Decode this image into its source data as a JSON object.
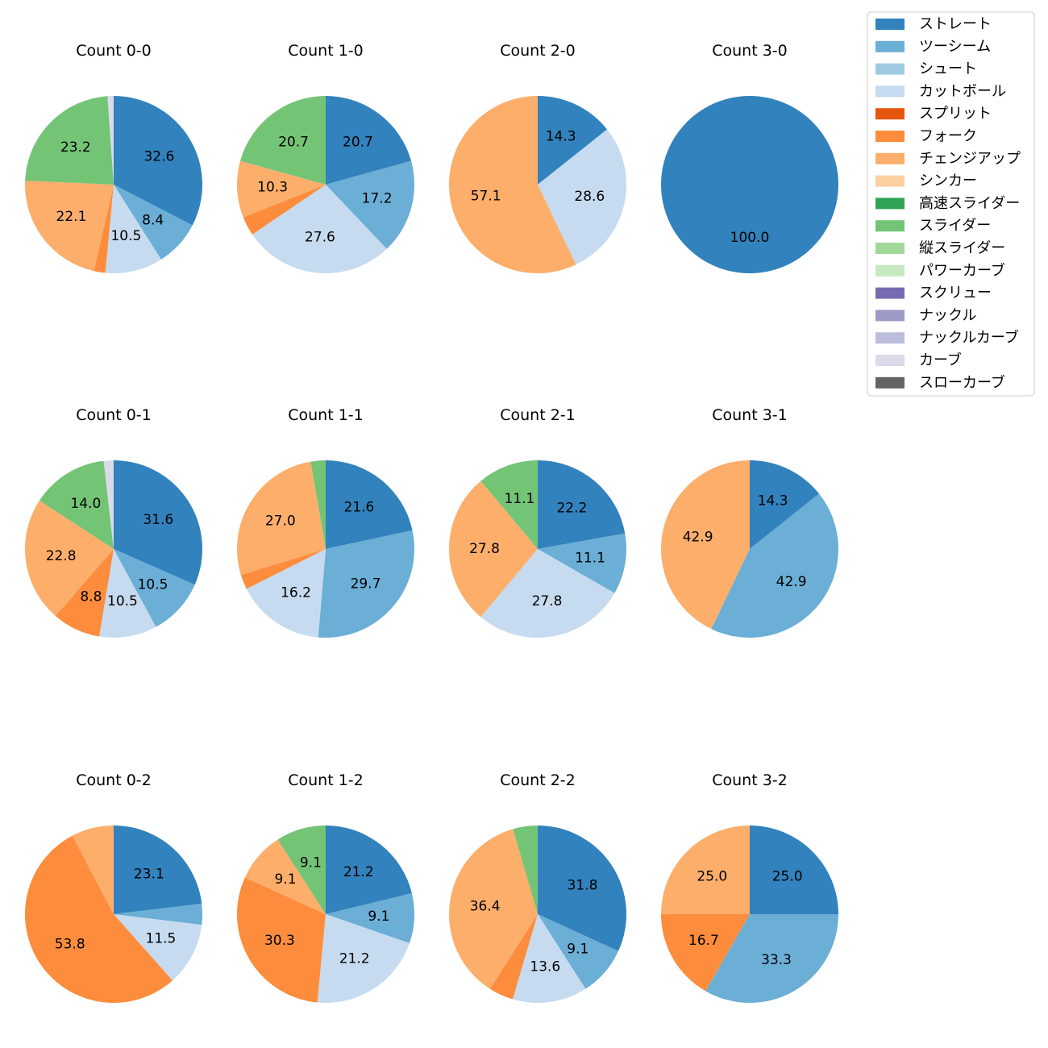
{
  "chart_data": {
    "type": "pie",
    "categories": [
      "ストレート",
      "ツーシーム",
      "シュート",
      "カットボール",
      "スプリット",
      "フォーク",
      "チェンジアップ",
      "シンカー",
      "高速スライダー",
      "スライダー",
      "縦スライダー",
      "パワーカーブ",
      "スクリュー",
      "ナックル",
      "ナックルカーブ",
      "カーブ",
      "スローカーブ"
    ],
    "colors": [
      "#3182bd",
      "#6baed6",
      "#9ecae1",
      "#c6dbef",
      "#e6550d",
      "#fd8d3c",
      "#fdae6b",
      "#fdd0a2",
      "#31a354",
      "#74c476",
      "#a1d99b",
      "#c7e9c0",
      "#756bb1",
      "#9e9ac8",
      "#bcbddc",
      "#dadaeb",
      "#636363"
    ],
    "pies": [
      {
        "title": "Count 0-0",
        "slices": [
          {
            "category": "ストレート",
            "value": 32.6,
            "label": "32.6"
          },
          {
            "category": "ツーシーム",
            "value": 8.4,
            "label": "8.4"
          },
          {
            "category": "カットボール",
            "value": 10.5,
            "label": "10.5"
          },
          {
            "category": "フォーク",
            "value": 2.1,
            "label": ""
          },
          {
            "category": "チェンジアップ",
            "value": 22.1,
            "label": "22.1"
          },
          {
            "category": "スライダー",
            "value": 23.2,
            "label": "23.2"
          },
          {
            "category": "カーブ",
            "value": 1.1,
            "label": ""
          }
        ]
      },
      {
        "title": "Count 1-0",
        "slices": [
          {
            "category": "ストレート",
            "value": 20.7,
            "label": "20.7"
          },
          {
            "category": "ツーシーム",
            "value": 17.2,
            "label": "17.2"
          },
          {
            "category": "カットボール",
            "value": 27.6,
            "label": "27.6"
          },
          {
            "category": "フォーク",
            "value": 3.5,
            "label": ""
          },
          {
            "category": "チェンジアップ",
            "value": 10.3,
            "label": "10.3"
          },
          {
            "category": "スライダー",
            "value": 20.7,
            "label": "20.7"
          }
        ]
      },
      {
        "title": "Count 2-0",
        "slices": [
          {
            "category": "ストレート",
            "value": 14.3,
            "label": "14.3"
          },
          {
            "category": "カットボール",
            "value": 28.6,
            "label": "28.6"
          },
          {
            "category": "チェンジアップ",
            "value": 57.1,
            "label": "57.1"
          }
        ]
      },
      {
        "title": "Count 3-0",
        "slices": [
          {
            "category": "ストレート",
            "value": 100.0,
            "label": "100.0"
          }
        ]
      },
      {
        "title": "Count 0-1",
        "slices": [
          {
            "category": "ストレート",
            "value": 31.6,
            "label": "31.6"
          },
          {
            "category": "ツーシーム",
            "value": 10.5,
            "label": "10.5"
          },
          {
            "category": "カットボール",
            "value": 10.5,
            "label": "10.5"
          },
          {
            "category": "フォーク",
            "value": 8.8,
            "label": "8.8"
          },
          {
            "category": "チェンジアップ",
            "value": 22.8,
            "label": "22.8"
          },
          {
            "category": "スライダー",
            "value": 14.0,
            "label": "14.0"
          },
          {
            "category": "カーブ",
            "value": 1.8,
            "label": ""
          }
        ]
      },
      {
        "title": "Count 1-1",
        "slices": [
          {
            "category": "ストレート",
            "value": 21.6,
            "label": "21.6"
          },
          {
            "category": "ツーシーム",
            "value": 29.7,
            "label": "29.7"
          },
          {
            "category": "カットボール",
            "value": 16.2,
            "label": "16.2"
          },
          {
            "category": "フォーク",
            "value": 2.7,
            "label": ""
          },
          {
            "category": "チェンジアップ",
            "value": 27.0,
            "label": "27.0"
          },
          {
            "category": "スライダー",
            "value": 2.7,
            "label": ""
          }
        ]
      },
      {
        "title": "Count 2-1",
        "slices": [
          {
            "category": "ストレート",
            "value": 22.2,
            "label": "22.2"
          },
          {
            "category": "ツーシーム",
            "value": 11.1,
            "label": "11.1"
          },
          {
            "category": "カットボール",
            "value": 27.8,
            "label": "27.8"
          },
          {
            "category": "チェンジアップ",
            "value": 27.8,
            "label": "27.8"
          },
          {
            "category": "スライダー",
            "value": 11.1,
            "label": "11.1"
          }
        ]
      },
      {
        "title": "Count 3-1",
        "slices": [
          {
            "category": "ストレート",
            "value": 14.3,
            "label": "14.3"
          },
          {
            "category": "ツーシーム",
            "value": 42.9,
            "label": "42.9"
          },
          {
            "category": "チェンジアップ",
            "value": 42.9,
            "label": "42.9"
          }
        ]
      },
      {
        "title": "Count 0-2",
        "slices": [
          {
            "category": "ストレート",
            "value": 23.1,
            "label": "23.1"
          },
          {
            "category": "ツーシーム",
            "value": 3.8,
            "label": ""
          },
          {
            "category": "カットボール",
            "value": 11.5,
            "label": "11.5"
          },
          {
            "category": "フォーク",
            "value": 53.8,
            "label": "53.8"
          },
          {
            "category": "チェンジアップ",
            "value": 7.7,
            "label": ""
          }
        ]
      },
      {
        "title": "Count 1-2",
        "slices": [
          {
            "category": "ストレート",
            "value": 21.2,
            "label": "21.2"
          },
          {
            "category": "ツーシーム",
            "value": 9.1,
            "label": "9.1"
          },
          {
            "category": "カットボール",
            "value": 21.2,
            "label": "21.2"
          },
          {
            "category": "フォーク",
            "value": 30.3,
            "label": "30.3"
          },
          {
            "category": "チェンジアップ",
            "value": 9.1,
            "label": "9.1"
          },
          {
            "category": "スライダー",
            "value": 9.1,
            "label": "9.1"
          }
        ]
      },
      {
        "title": "Count 2-2",
        "slices": [
          {
            "category": "ストレート",
            "value": 31.8,
            "label": "31.8"
          },
          {
            "category": "ツーシーム",
            "value": 9.1,
            "label": "9.1"
          },
          {
            "category": "カットボール",
            "value": 13.6,
            "label": "13.6"
          },
          {
            "category": "フォーク",
            "value": 4.5,
            "label": ""
          },
          {
            "category": "チェンジアップ",
            "value": 36.4,
            "label": "36.4"
          },
          {
            "category": "スライダー",
            "value": 4.5,
            "label": ""
          }
        ]
      },
      {
        "title": "Count 3-2",
        "slices": [
          {
            "category": "ストレート",
            "value": 25.0,
            "label": "25.0"
          },
          {
            "category": "ツーシーム",
            "value": 33.3,
            "label": "33.3"
          },
          {
            "category": "フォーク",
            "value": 16.7,
            "label": "16.7"
          },
          {
            "category": "チェンジアップ",
            "value": 25.0,
            "label": "25.0"
          }
        ]
      }
    ],
    "legend": {
      "position": "top-right",
      "entries": [
        "ストレート",
        "ツーシーム",
        "シュート",
        "カットボール",
        "スプリット",
        "フォーク",
        "チェンジアップ",
        "シンカー",
        "高速スライダー",
        "スライダー",
        "縦スライダー",
        "パワーカーブ",
        "スクリュー",
        "ナックル",
        "ナックルカーブ",
        "カーブ",
        "スローカーブ"
      ]
    }
  }
}
